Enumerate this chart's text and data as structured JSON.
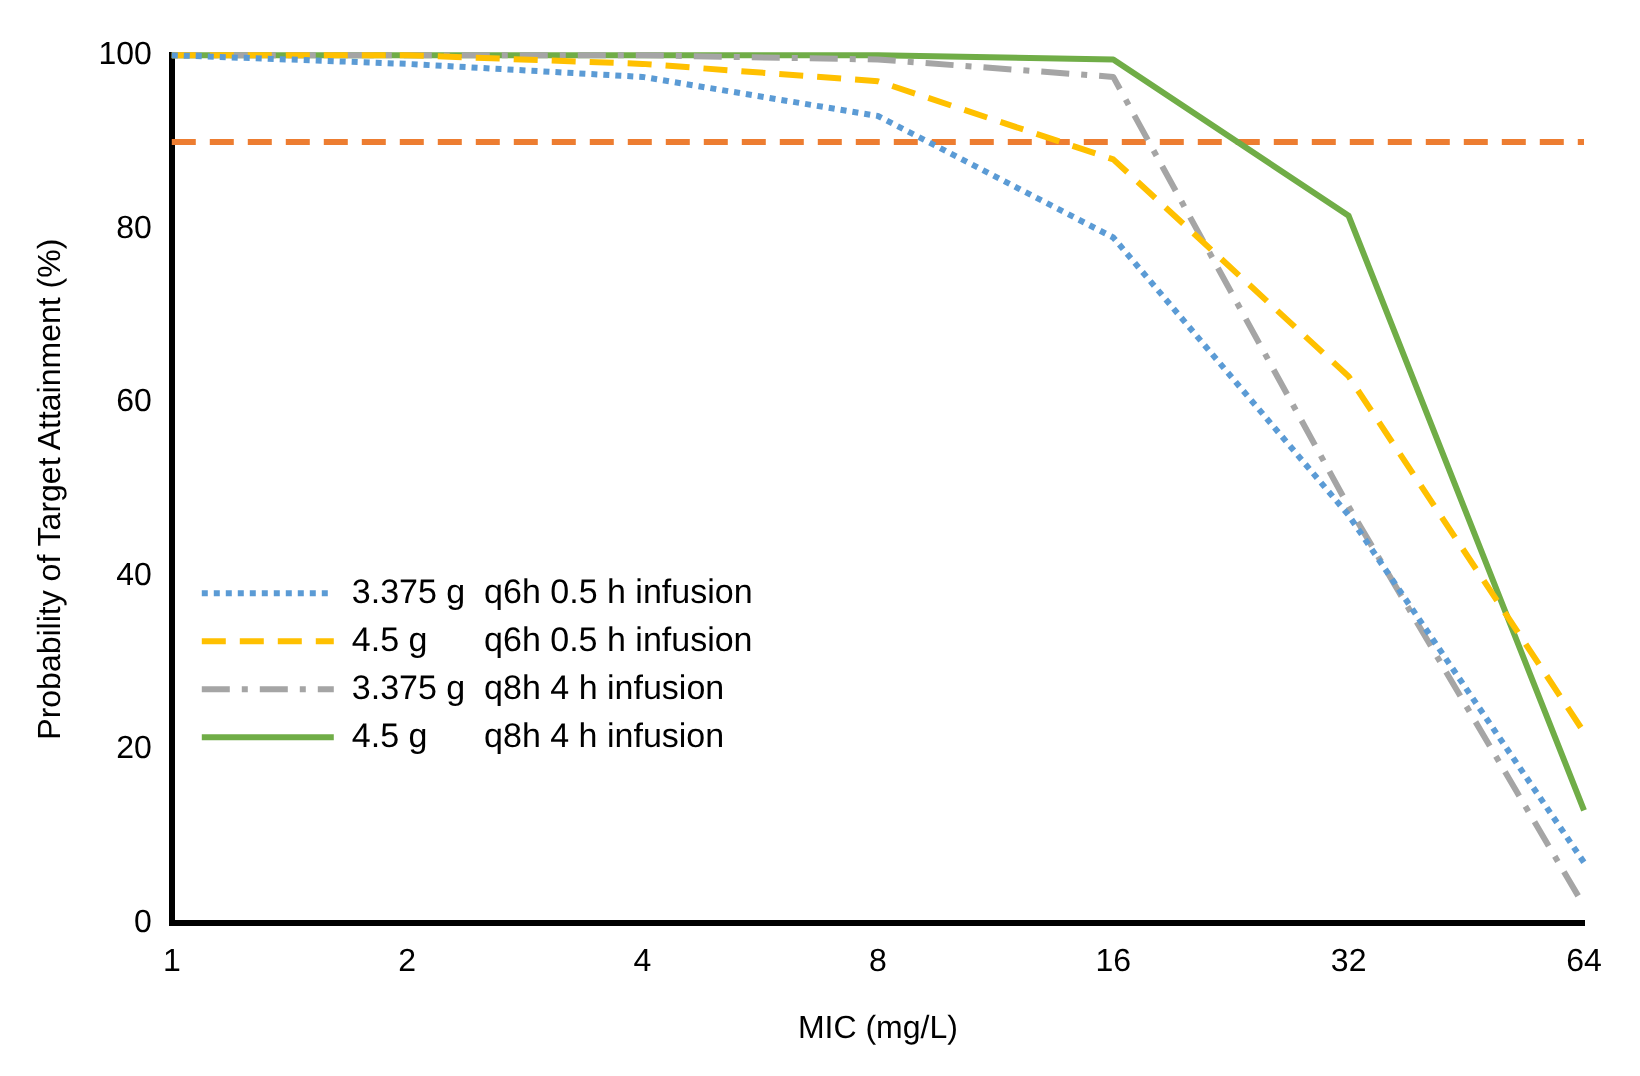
{
  "chart_data": {
    "type": "line",
    "xlabel": "MIC (mg/L)",
    "ylabel": "Probability of Target Attainment (%)",
    "categories": [
      "1",
      "2",
      "4",
      "8",
      "16",
      "32",
      "64"
    ],
    "series": [
      {
        "name": "3.375 g  q6h 0.5 h infusion",
        "color": "#5b9bd5",
        "line_style": "dotted",
        "values": [
          100,
          99,
          97.5,
          93,
          79,
          47,
          7
        ]
      },
      {
        "name": "4.5 g      q6h 0.5 h infusion",
        "color": "#ffc000",
        "line_style": "dashed",
        "values": [
          100,
          100,
          99,
          97,
          88,
          63,
          22
        ]
      },
      {
        "name": "3.375 g  q8h 4 h infusion",
        "color": "#a5a5a5",
        "line_style": "dashdot",
        "values": [
          100,
          100,
          100,
          99.5,
          97.5,
          48,
          2
        ]
      },
      {
        "name": "4.5 g      q8h 4 h infusion",
        "color": "#70ad47",
        "line_style": "solid",
        "values": [
          100,
          100,
          100,
          100,
          99.5,
          81.5,
          13
        ]
      }
    ],
    "ref_lines": [
      {
        "axis": "y",
        "value": 90,
        "color": "#ed7d31",
        "line_style": "dashed"
      }
    ],
    "ylim": [
      0,
      100
    ],
    "yticks": [
      0,
      20,
      40,
      60,
      80,
      100
    ],
    "grid": false,
    "legend": "bottom left",
    "marker": "none"
  }
}
